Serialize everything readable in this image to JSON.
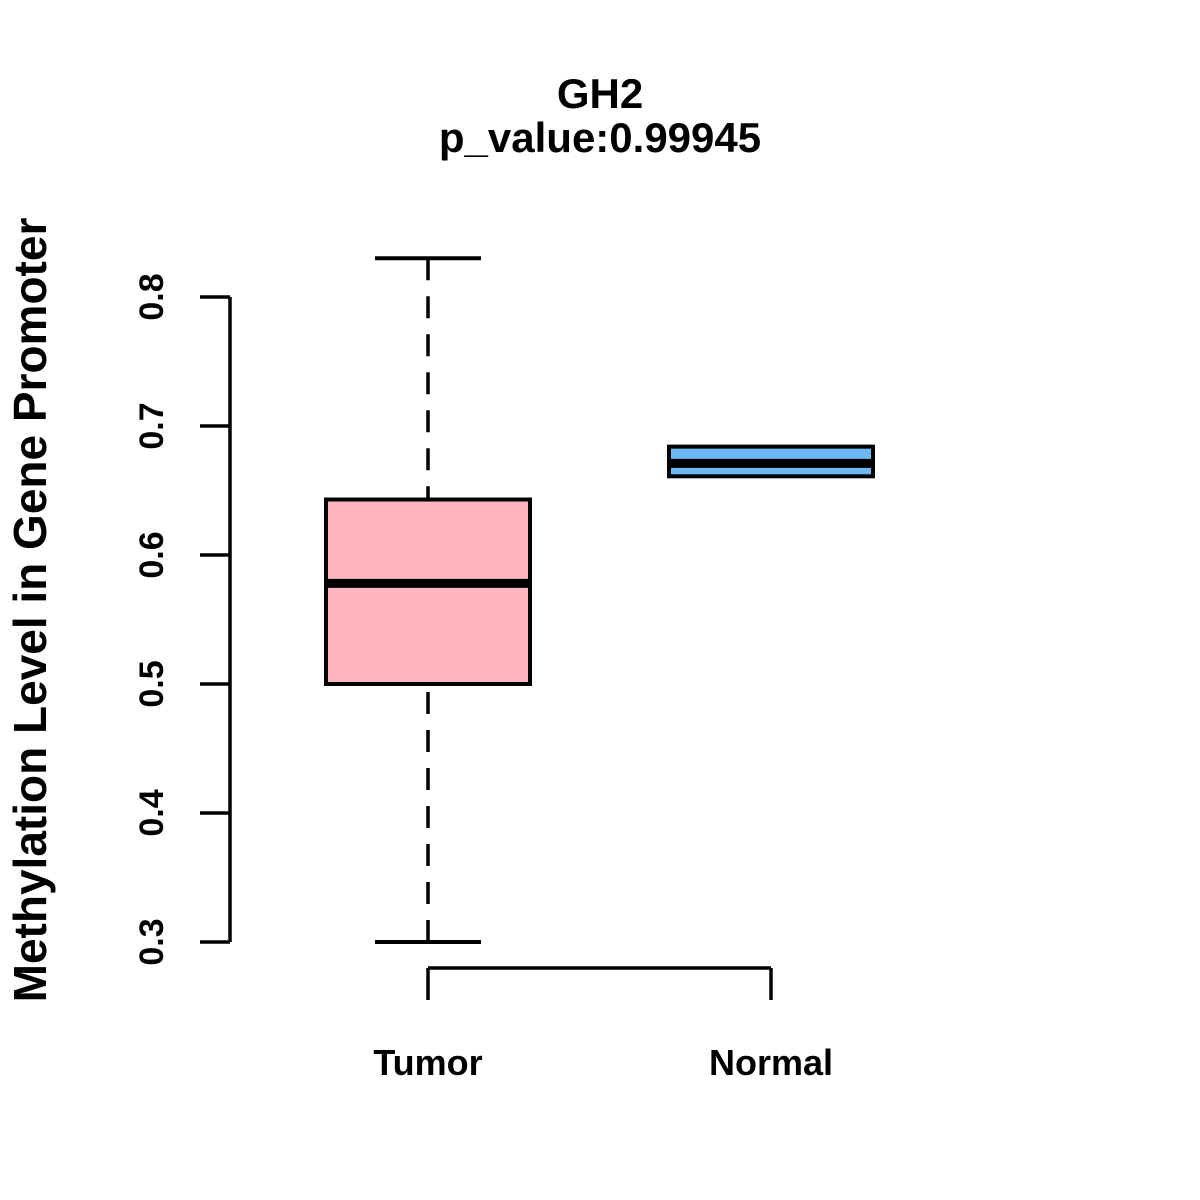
{
  "title": "GH2",
  "subtitle": "p_value:0.99945",
  "chart_data": {
    "type": "boxplot",
    "title": "GH2",
    "subtitle": "p_value:0.99945",
    "xlabel": "",
    "ylabel": "Methylation Level in Gene Promoter",
    "categories": [
      "Tumor",
      "Normal"
    ],
    "y_ticks": [
      0.3,
      0.4,
      0.5,
      0.6,
      0.7,
      0.8
    ],
    "ylim": [
      0.3,
      0.83
    ],
    "grid": false,
    "legend": "none",
    "series": [
      {
        "name": "Tumor",
        "box_color": "#FFB6C1",
        "border_color": "#000000",
        "whisker_low": 0.3,
        "q1": 0.5,
        "median": 0.578,
        "q3": 0.643,
        "whisker_high": 0.83
      },
      {
        "name": "Normal",
        "box_color": "#6CB8F2",
        "border_color": "#000000",
        "whisker_low": 0.661,
        "q1": 0.661,
        "median": 0.671,
        "q3": 0.684,
        "whisker_high": 0.684
      }
    ]
  }
}
